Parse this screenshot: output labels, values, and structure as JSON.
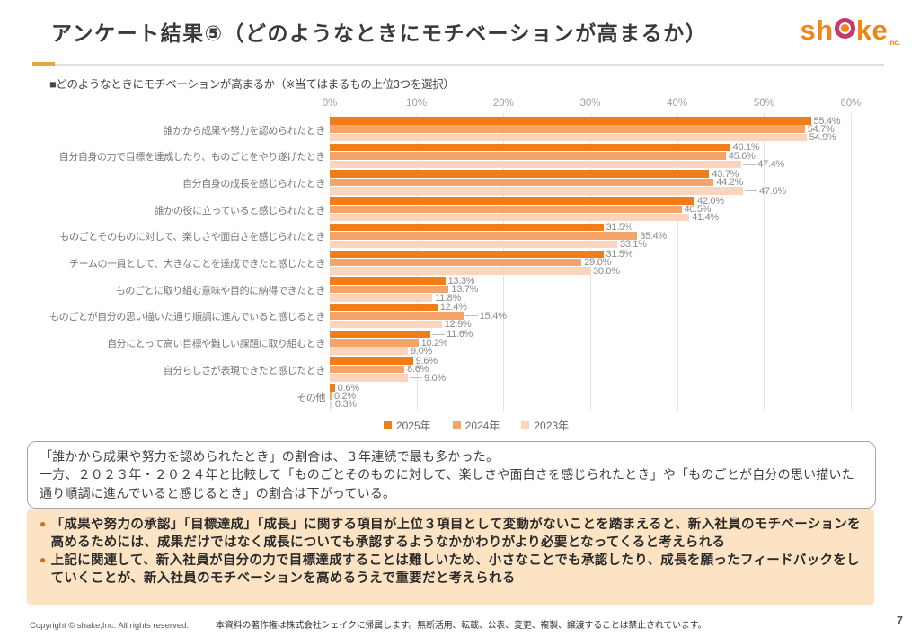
{
  "header": {
    "title": "アンケート結果⑤（どのようなときにモチベーションが高まるか）",
    "logo": {
      "part1": "sh",
      "part2": "ke",
      "suffix": "inc."
    }
  },
  "subtitle": "■どのようなときにモチベーションが高まるか（※当てはまるもの上位3つを選択）",
  "chart_data": {
    "type": "bar",
    "orientation": "horizontal",
    "title": "どのようなときにモチベーションが高まるか（※当てはまるもの上位3つを選択）",
    "x_axis": {
      "min": 0,
      "max": 60,
      "ticks": [
        "0%",
        "10%",
        "20%",
        "30%",
        "40%",
        "50%",
        "60%"
      ],
      "grid": true
    },
    "legend_position": "bottom",
    "categories": [
      "誰かから成果や努力を認められたとき",
      "自分自身の力で目標を達成したり、ものごとをやり遂げたとき",
      "自分自身の成長を感じられたとき",
      "誰かの役に立っていると感じられたとき",
      "ものごとそのものに対して、楽しさや面白さを感じられたとき",
      "チームの一員として、大きなことを達成できたと感じたとき",
      "ものごとに取り組む意味や目的に納得できたとき",
      "ものごとが自分の思い描いた通り順調に進んでいると感じるとき",
      "自分にとって高い目標や難しい課題に取り組むとき",
      "自分らしさが表現できたと感じたとき",
      "その他"
    ],
    "series": [
      {
        "name": "2025年",
        "color": "#F07D1A",
        "values": [
          55.4,
          46.1,
          43.7,
          42.0,
          31.5,
          31.5,
          13.3,
          12.4,
          11.6,
          9.6,
          0.6
        ]
      },
      {
        "name": "2024年",
        "color": "#F5A469",
        "values": [
          54.7,
          45.6,
          44.2,
          40.5,
          35.4,
          29.0,
          13.7,
          15.4,
          10.2,
          8.6,
          0.2
        ]
      },
      {
        "name": "2023年",
        "color": "#FAD4BC",
        "values": [
          54.9,
          47.4,
          47.6,
          41.4,
          33.1,
          30.0,
          11.8,
          12.9,
          9.0,
          9.0,
          0.3
        ]
      }
    ],
    "offset_labels": [
      [
        1,
        2
      ],
      [
        2,
        2
      ],
      [
        7,
        1
      ],
      [
        8,
        0
      ],
      [
        9,
        2
      ]
    ]
  },
  "notes_box": {
    "lines": [
      "「誰かから成果や努力を認められたとき」の割合は、３年連続で最も多かった。",
      "一方、２０２３年・２０２４年と比較して「ものごとそのものに対して、楽しさや面白さを感じられたとき」や「ものごとが自分の思い描いた通り順調に進んでいると感じるとき」の割合は下がっている。"
    ]
  },
  "summary_box": {
    "bullet_marker": "●",
    "bullets": [
      "「成果や努力の承認」「目標達成」「成長」に関する項目が上位３項目として変動がないことを踏まえると、新入社員のモチベーションを高めるためには、成果だけではなく成長についても承認するようなかかわりがより必要となってくると考えられる",
      "上記に関連して、新入社員が自分の力で目標達成することは難しいため、小さなことでも承認したり、成長を願ったフィードバックをしていくことが、新入社員のモチベーションを高めるうえで重要だと考えられる"
    ]
  },
  "footer": {
    "copyright": "Copyright © shake,Inc.  All rights reserved.",
    "notice": "本資料の著作権は株式会社シェイクに帰属します。無断活用、転載、公表、変更、複製、譲渡することは禁止されています。",
    "page": "7"
  }
}
